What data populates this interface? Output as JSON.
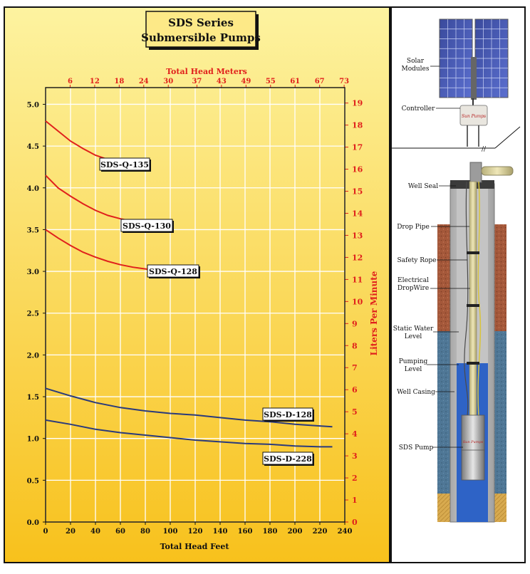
{
  "title": {
    "line1": "SDS Series",
    "line2": "Submersible Pumps"
  },
  "colors": {
    "panel_top": "#fdf3a0",
    "panel_bottom": "#f8c11c",
    "grid": "#ffffff",
    "q_series": "#e0201c",
    "d_series": "#2a3a7c",
    "meters_axis": "#e0201c",
    "lpm_axis": "#e0201c",
    "frame": "#111111"
  },
  "chart_data": {
    "type": "line",
    "title": "",
    "xlabel": "Total Head Feet",
    "ylabel": "",
    "y2label": "Liters Per Minute",
    "x2label": "Total Head Meters",
    "xlim": [
      0,
      240
    ],
    "ylim": [
      0,
      5.2
    ],
    "y2lim": [
      0,
      19.7
    ],
    "grid": true,
    "x_ticks": [
      "0",
      "20",
      "40",
      "60",
      "80",
      "100",
      "120",
      "140",
      "160",
      "180",
      "200",
      "220",
      "240"
    ],
    "y_ticks": [
      "0.0",
      "0.5",
      "1.0",
      "1.5",
      "2.0",
      "2.5",
      "3.0",
      "3.5",
      "4.0",
      "4.5",
      "5.0"
    ],
    "y2_ticks": [
      "0",
      "1",
      "2",
      "3",
      "4",
      "5",
      "6",
      "7",
      "8",
      "9",
      "10",
      "11",
      "12",
      "13",
      "14",
      "15",
      "16",
      "17",
      "18",
      "19"
    ],
    "x2_ticks": [
      "6",
      "12",
      "18",
      "24",
      "30",
      "37",
      "43",
      "49",
      "55",
      "61",
      "67",
      "73"
    ],
    "series": [
      {
        "name": "SDS-Q-135",
        "color": "#e0201c",
        "x": [
          0,
          10,
          20,
          30,
          40,
          50,
          60
        ],
        "y": [
          4.8,
          4.68,
          4.56,
          4.47,
          4.39,
          4.34,
          4.3
        ]
      },
      {
        "name": "SDS-Q-130",
        "color": "#e0201c",
        "x": [
          0,
          10,
          20,
          30,
          40,
          50,
          60,
          70,
          80
        ],
        "y": [
          4.15,
          4.0,
          3.9,
          3.81,
          3.73,
          3.67,
          3.63,
          3.6,
          3.56
        ]
      },
      {
        "name": "SDS-Q-128",
        "color": "#e0201c",
        "x": [
          0,
          10,
          20,
          30,
          40,
          50,
          60,
          70,
          80,
          90,
          100
        ],
        "y": [
          3.5,
          3.4,
          3.31,
          3.23,
          3.17,
          3.12,
          3.08,
          3.05,
          3.03,
          3.01,
          3.0
        ]
      },
      {
        "name": "SDS-D-128",
        "color": "#2a3a7c",
        "x": [
          0,
          20,
          40,
          60,
          80,
          100,
          120,
          140,
          160,
          180,
          200,
          220,
          230
        ],
        "y": [
          1.6,
          1.51,
          1.43,
          1.37,
          1.33,
          1.3,
          1.28,
          1.25,
          1.22,
          1.2,
          1.17,
          1.15,
          1.14
        ]
      },
      {
        "name": "SDS-D-228",
        "color": "#2a3a7c",
        "x": [
          0,
          20,
          40,
          60,
          80,
          100,
          120,
          140,
          160,
          180,
          200,
          220,
          230
        ],
        "y": [
          1.22,
          1.17,
          1.11,
          1.07,
          1.04,
          1.01,
          0.98,
          0.96,
          0.94,
          0.93,
          0.91,
          0.9,
          0.9
        ]
      }
    ]
  },
  "diagram": {
    "labels": [
      {
        "id": "solar",
        "lines": [
          "Solar",
          "Modules"
        ]
      },
      {
        "id": "controller",
        "lines": [
          "Controller"
        ]
      },
      {
        "id": "well_seal",
        "lines": [
          "Well Seal"
        ]
      },
      {
        "id": "drop_pipe",
        "lines": [
          "Drop Pipe"
        ]
      },
      {
        "id": "safety_rope",
        "lines": [
          "Safety Rope"
        ]
      },
      {
        "id": "drop_wire",
        "lines": [
          "Electrical",
          "DropWire"
        ]
      },
      {
        "id": "static_water",
        "lines": [
          "Static Water",
          "Level"
        ]
      },
      {
        "id": "pumping_level",
        "lines": [
          "Pumping",
          "Level"
        ]
      },
      {
        "id": "well_casing",
        "lines": [
          "Well Casing"
        ]
      },
      {
        "id": "sds_pump",
        "lines": [
          "SDS Pump"
        ]
      }
    ]
  }
}
